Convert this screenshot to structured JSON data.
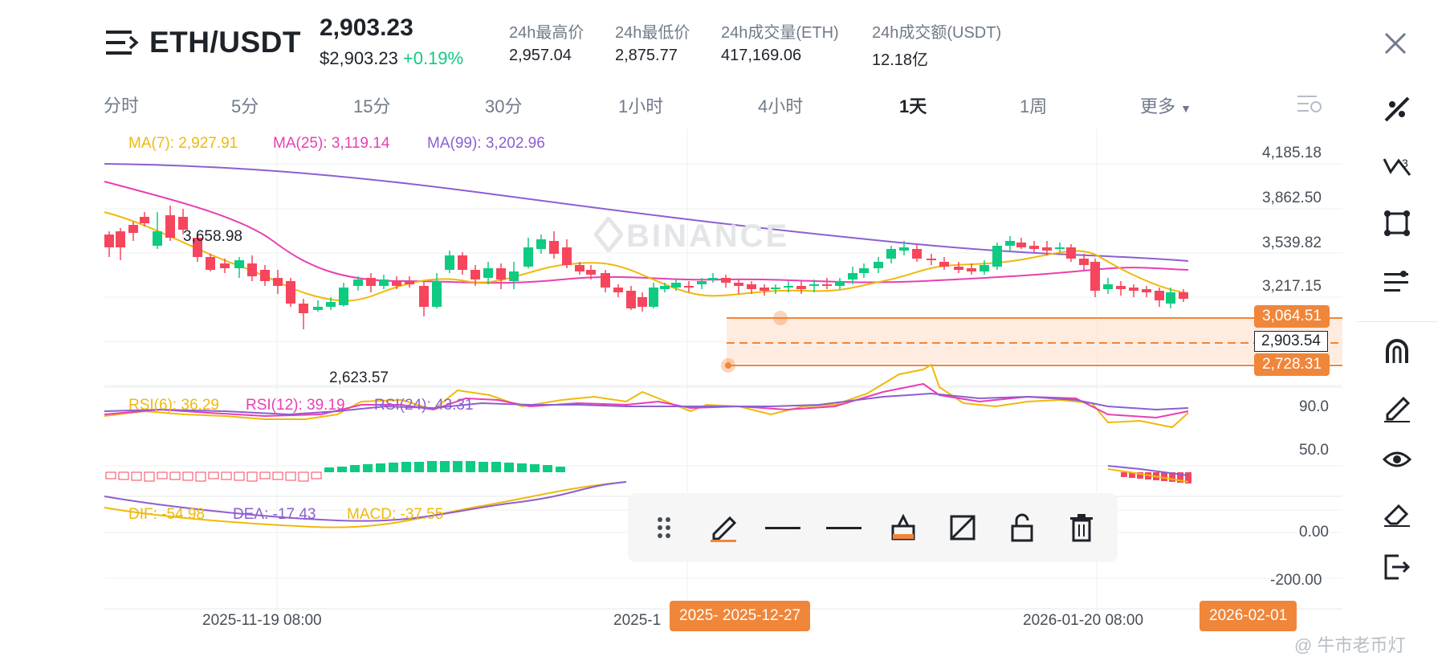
{
  "header": {
    "pair": "ETH/USDT",
    "price": "2,903.23",
    "price_usd": "$2,903.23",
    "change": "+0.19%",
    "stats": [
      {
        "label": "24h最高价",
        "value": "2,957.04"
      },
      {
        "label": "24h最低价",
        "value": "2,875.77"
      },
      {
        "label": "24h成交量(ETH)",
        "value": "417,169.06"
      },
      {
        "label": "24h成交额(USDT)",
        "value": "12.18亿"
      }
    ]
  },
  "tabs": [
    {
      "label": "分时"
    },
    {
      "label": "5分"
    },
    {
      "label": "15分"
    },
    {
      "label": "30分"
    },
    {
      "label": "1小时"
    },
    {
      "label": "4小时"
    },
    {
      "label": "1天"
    },
    {
      "label": "1周"
    },
    {
      "label": "更多"
    }
  ],
  "active_tab": "1天",
  "ma": {
    "ma7": "MA(7): 2,927.91",
    "ma25": "MA(25): 3,119.14",
    "ma99": "MA(99): 3,202.96"
  },
  "rsi": {
    "rsi6": "RSI(6): 36.29",
    "rsi12": "RSI(12): 39.19",
    "rsi24": "RSI(24): 43.31"
  },
  "macd": {
    "dif": "DIF: -54.98",
    "dea": "DEA: -17.43",
    "macd": "MACD: -37.55"
  },
  "price_axis": [
    "4,185.18",
    "3,862.50",
    "3,539.82",
    "3,217.15"
  ],
  "price_tags": {
    "upper": "3,064.51",
    "current": "2,903.54",
    "lower": "2,728.31"
  },
  "annotations": {
    "high": "3,658.98",
    "low": "2,623.57"
  },
  "rsi_axis": [
    "90.0",
    "50.0"
  ],
  "macd_axis": [
    "0.00",
    "-200.00"
  ],
  "time_axis": [
    "2025-11-19 08:00",
    "2025-1",
    "2026-01-20 08:00"
  ],
  "date_tags": {
    "left_a": "2025-",
    "left_b": "2025-12-27",
    "right": "2026-02-01"
  },
  "watermark": "BINANCE",
  "footer_watermark": "@ 牛市老币灯",
  "colors": {
    "up": "#0ecb81",
    "down": "#f6465d",
    "ma7": "#f0b90b",
    "ma25": "#e83fb4",
    "ma99": "#8c5fd1",
    "accent": "#f0863a"
  },
  "right_tools": [
    "trend-line-icon",
    "fib-icon",
    "shape-icon",
    "indicator-icon",
    "magnet-icon",
    "pencil-icon",
    "eye-icon",
    "eraser-icon",
    "exit-icon"
  ],
  "drawing_toolbar": [
    "drag-handle-icon",
    "pencil-icon",
    "line-width-icon",
    "line-style-icon",
    "fill-icon",
    "hide-icon",
    "unlock-icon",
    "trash-icon"
  ]
}
